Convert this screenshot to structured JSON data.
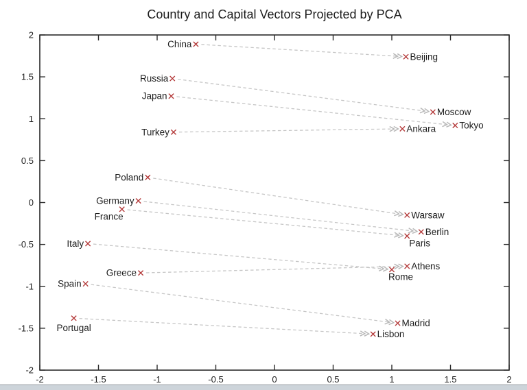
{
  "title": "Country and Capital Vectors Projected by PCA",
  "colors": {
    "marker": "#b43a3a",
    "connector": "#c6c6c6",
    "arrowhead": "#b8b8b8",
    "axis": "#2a2a2a",
    "text": "#1c1c1c"
  },
  "chart_data": {
    "type": "scatter",
    "title": "Country and Capital Vectors Projected by PCA",
    "xlabel": "",
    "ylabel": "",
    "xlim": [
      -2,
      2
    ],
    "ylim": [
      -2,
      2
    ],
    "grid": false,
    "legend": "none",
    "marker": "x",
    "x_ticks": [
      {
        "v": -2,
        "label": "-2"
      },
      {
        "v": -1.5,
        "label": "-1.5"
      },
      {
        "v": -1,
        "label": "-1"
      },
      {
        "v": -0.5,
        "label": "-0.5"
      },
      {
        "v": 0,
        "label": "0"
      },
      {
        "v": 0.5,
        "label": "0.5"
      },
      {
        "v": 1,
        "label": "1"
      },
      {
        "v": 1.5,
        "label": "1.5"
      },
      {
        "v": 2,
        "label": "2"
      }
    ],
    "y_ticks": [
      {
        "v": 2,
        "label": "2"
      },
      {
        "v": 1.5,
        "label": "1.5"
      },
      {
        "v": 1,
        "label": "1"
      },
      {
        "v": 0.5,
        "label": "0.5"
      },
      {
        "v": 0,
        "label": "0"
      },
      {
        "v": -0.5,
        "label": "-0.5"
      },
      {
        "v": -1,
        "label": "-1"
      },
      {
        "v": -1.5,
        "label": "-1.5"
      },
      {
        "v": -2,
        "label": "-2"
      }
    ],
    "pairs": [
      {
        "country": {
          "label": "China",
          "x": -0.67,
          "y": 1.89,
          "label_pos": "left"
        },
        "capital": {
          "label": "Beijing",
          "x": 1.12,
          "y": 1.74,
          "label_pos": "right"
        }
      },
      {
        "country": {
          "label": "Russia",
          "x": -0.87,
          "y": 1.48,
          "label_pos": "left"
        },
        "capital": {
          "label": "Moscow",
          "x": 1.35,
          "y": 1.08,
          "label_pos": "right"
        }
      },
      {
        "country": {
          "label": "Japan",
          "x": -0.88,
          "y": 1.27,
          "label_pos": "left"
        },
        "capital": {
          "label": "Tokyo",
          "x": 1.54,
          "y": 0.92,
          "label_pos": "right"
        }
      },
      {
        "country": {
          "label": "Turkey",
          "x": -0.86,
          "y": 0.84,
          "label_pos": "left"
        },
        "capital": {
          "label": "Ankara",
          "x": 1.09,
          "y": 0.88,
          "label_pos": "right"
        }
      },
      {
        "country": {
          "label": "Poland",
          "x": -1.08,
          "y": 0.3,
          "label_pos": "left"
        },
        "capital": {
          "label": "Warsaw",
          "x": 1.13,
          "y": -0.15,
          "label_pos": "right"
        }
      },
      {
        "country": {
          "label": "Germany",
          "x": -1.16,
          "y": 0.02,
          "label_pos": "left"
        },
        "capital": {
          "label": "Berlin",
          "x": 1.25,
          "y": -0.35,
          "label_pos": "right"
        }
      },
      {
        "country": {
          "label": "France",
          "x": -1.3,
          "y": -0.08,
          "label_pos": "below-left"
        },
        "capital": {
          "label": "Paris",
          "x": 1.13,
          "y": -0.4,
          "label_pos": "below-right"
        }
      },
      {
        "country": {
          "label": "Italy",
          "x": -1.59,
          "y": -0.49,
          "label_pos": "left"
        },
        "capital": {
          "label": "Rome",
          "x": 1.0,
          "y": -0.8,
          "label_pos": "below-right",
          "dx": -8
        }
      },
      {
        "country": {
          "label": "Greece",
          "x": -1.14,
          "y": -0.84,
          "label_pos": "left"
        },
        "capital": {
          "label": "Athens",
          "x": 1.13,
          "y": -0.76,
          "label_pos": "right"
        }
      },
      {
        "country": {
          "label": "Spain",
          "x": -1.61,
          "y": -0.97,
          "label_pos": "left"
        },
        "capital": {
          "label": "Madrid",
          "x": 1.05,
          "y": -1.44,
          "label_pos": "right"
        }
      },
      {
        "country": {
          "label": "Portugal",
          "x": -1.71,
          "y": -1.38,
          "label_pos": "below-center",
          "dy": 2
        },
        "capital": {
          "label": "Lisbon",
          "x": 0.84,
          "y": -1.57,
          "label_pos": "right"
        }
      }
    ]
  }
}
